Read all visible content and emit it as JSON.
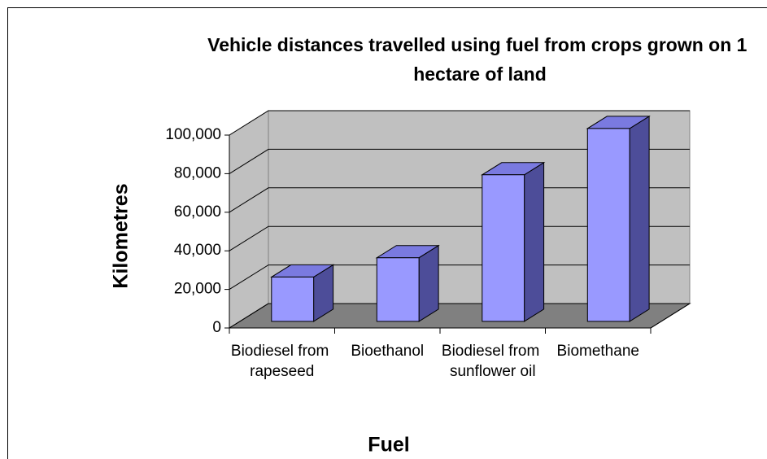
{
  "chart_data": {
    "type": "bar3d",
    "title": "Vehicle distances travelled using fuel from crops grown on 1 hectare of land",
    "x_label": "Fuel",
    "y_label": "Kilometres",
    "categories": [
      "Biodiesel from rapeseed",
      "Bioethanol",
      "Biodiesel from sunflower oil",
      "Biomethane"
    ],
    "values": [
      23000,
      33000,
      76000,
      100000
    ],
    "color": "#9999ff",
    "ylim": [
      0,
      100000
    ],
    "yticks": [
      0,
      {
        "value": 20000,
        "label": "20,000"
      },
      {
        "value": 40000,
        "label": "40,000"
      },
      {
        "value": 60000,
        "label": "60,000"
      },
      {
        "value": 80000,
        "label": "80,000"
      },
      {
        "value": 100000,
        "label": "100,000"
      }
    ],
    "grid": true
  }
}
